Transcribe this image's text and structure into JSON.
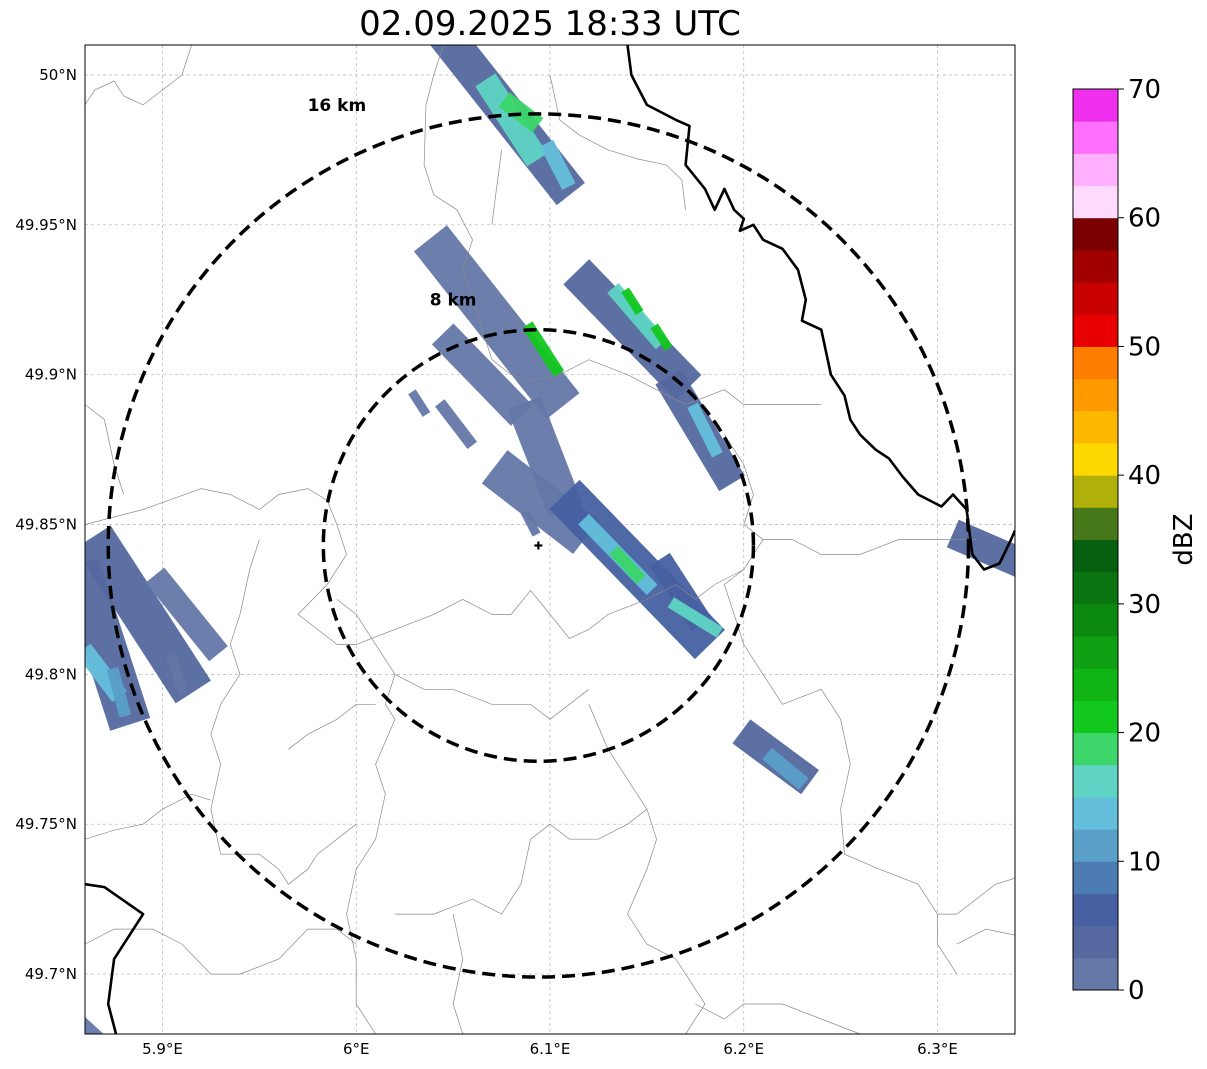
{
  "title": "02.09.2025 18:33 UTC",
  "map": {
    "lon_range": [
      5.86,
      6.34
    ],
    "lat_range": [
      49.68,
      50.01
    ],
    "grid": true,
    "lon_ticks": [
      {
        "value": 5.9,
        "label": "5.9°E"
      },
      {
        "value": 6.0,
        "label": "6°E"
      },
      {
        "value": 6.1,
        "label": "6.1°E"
      },
      {
        "value": 6.2,
        "label": "6.2°E"
      },
      {
        "value": 6.3,
        "label": "6.3°E"
      }
    ],
    "lat_ticks": [
      {
        "value": 50.0,
        "label": "50°N"
      },
      {
        "value": 49.95,
        "label": "49.95°N"
      },
      {
        "value": 49.9,
        "label": "49.9°N"
      },
      {
        "value": 49.85,
        "label": "49.85°N"
      },
      {
        "value": 49.8,
        "label": "49.8°N"
      },
      {
        "value": 49.75,
        "label": "49.75°N"
      },
      {
        "value": 49.7,
        "label": "49.7°N"
      }
    ],
    "radar_site": {
      "lon": 6.094,
      "lat": 49.843
    },
    "range_rings": [
      {
        "label": "8 km",
        "radius_lat": 0.072,
        "radius_lon": 0.111,
        "label_lon": 6.05,
        "label_lat": 49.923
      },
      {
        "label": "16 km",
        "radius_lat": 0.144,
        "radius_lon": 0.222,
        "label_lon": 5.99,
        "label_lat": 49.988
      }
    ]
  },
  "colorbar": {
    "label": "dBZ",
    "min": 0,
    "max": 70,
    "step": 2.5,
    "tick_labels": [
      "0",
      "10",
      "20",
      "30",
      "40",
      "50",
      "60",
      "70"
    ],
    "tick_values": [
      0,
      10,
      20,
      30,
      40,
      50,
      60,
      70
    ],
    "colors": [
      "#6478a8",
      "#5569a0",
      "#4660a2",
      "#4d7cb2",
      "#599fc8",
      "#64bfdc",
      "#5fd4c4",
      "#3cd66a",
      "#12c81e",
      "#10b414",
      "#0f9f12",
      "#0c8a10",
      "#0a7510",
      "#066010",
      "#46781a",
      "#afb00a",
      "#ffd800",
      "#ffb800",
      "#ff9a00",
      "#ff7e00",
      "#e80000",
      "#c80000",
      "#a00000",
      "#7a0000",
      "#ffdcff",
      "#ffb0ff",
      "#ff70ff",
      "#ee30ee"
    ]
  },
  "echoes": [
    {
      "lon1": 6.05,
      "lat1": 50.01,
      "lon2": 6.105,
      "lat2": 49.965,
      "w": 0.012,
      "dbz": 3
    },
    {
      "lon1": 6.07,
      "lat1": 49.995,
      "lon2": 6.09,
      "lat2": 49.975,
      "w": 0.008,
      "dbz": 15
    },
    {
      "lon1": 6.08,
      "lat1": 49.99,
      "lon2": 6.09,
      "lat2": 49.985,
      "w": 0.006,
      "dbz": 18
    },
    {
      "lon1": 6.1,
      "lat1": 49.975,
      "lon2": 6.108,
      "lat2": 49.965,
      "w": 0.005,
      "dbz": 13
    },
    {
      "lon1": 6.045,
      "lat1": 49.94,
      "lon2": 6.1,
      "lat2": 49.895,
      "w": 0.014,
      "dbz": 2
    },
    {
      "lon1": 6.09,
      "lat1": 49.915,
      "lon2": 6.103,
      "lat2": 49.902,
      "w": 0.004,
      "dbz": 22
    },
    {
      "lon1": 6.05,
      "lat1": 49.91,
      "lon2": 6.08,
      "lat2": 49.89,
      "w": 0.01,
      "dbz": 2
    },
    {
      "lon1": 6.12,
      "lat1": 49.93,
      "lon2": 6.165,
      "lat2": 49.9,
      "w": 0.012,
      "dbz": 4
    },
    {
      "lon1": 6.135,
      "lat1": 49.927,
      "lon2": 6.155,
      "lat2": 49.912,
      "w": 0.005,
      "dbz": 15
    },
    {
      "lon1": 6.14,
      "lat1": 49.927,
      "lon2": 6.145,
      "lat2": 49.922,
      "w": 0.003,
      "dbz": 22
    },
    {
      "lon1": 6.155,
      "lat1": 49.915,
      "lon2": 6.16,
      "lat2": 49.91,
      "w": 0.003,
      "dbz": 22
    },
    {
      "lon1": 6.165,
      "lat1": 49.895,
      "lon2": 6.19,
      "lat2": 49.868,
      "w": 0.01,
      "dbz": 4
    },
    {
      "lon1": 6.175,
      "lat1": 49.888,
      "lon2": 6.185,
      "lat2": 49.875,
      "w": 0.004,
      "dbz": 13
    },
    {
      "lon1": 6.09,
      "lat1": 49.885,
      "lon2": 6.105,
      "lat2": 49.86,
      "w": 0.012,
      "dbz": 2
    },
    {
      "lon1": 6.08,
      "lat1": 49.865,
      "lon2": 6.11,
      "lat2": 49.85,
      "w": 0.014,
      "dbz": 2
    },
    {
      "lon1": 6.115,
      "lat1": 49.855,
      "lon2": 6.175,
      "lat2": 49.815,
      "w": 0.014,
      "dbz": 6
    },
    {
      "lon1": 6.12,
      "lat1": 49.85,
      "lon2": 6.15,
      "lat2": 49.83,
      "w": 0.005,
      "dbz": 13
    },
    {
      "lon1": 6.135,
      "lat1": 49.84,
      "lon2": 6.145,
      "lat2": 49.833,
      "w": 0.004,
      "dbz": 18
    },
    {
      "lon1": 6.16,
      "lat1": 49.835,
      "lon2": 6.175,
      "lat2": 49.82,
      "w": 0.008,
      "dbz": 5
    },
    {
      "lon1": 6.165,
      "lat1": 49.823,
      "lon2": 6.185,
      "lat2": 49.815,
      "w": 0.004,
      "dbz": 17
    },
    {
      "lon1": 6.03,
      "lat1": 49.893,
      "lon2": 6.035,
      "lat2": 49.888,
      "w": 0.003,
      "dbz": 2
    },
    {
      "lon1": 6.045,
      "lat1": 49.889,
      "lon2": 6.058,
      "lat2": 49.878,
      "w": 0.004,
      "dbz": 2
    },
    {
      "lon1": 6.088,
      "lat1": 49.853,
      "lon2": 6.092,
      "lat2": 49.848,
      "w": 0.003,
      "dbz": 2
    },
    {
      "lon1": 5.86,
      "lat1": 49.83,
      "lon2": 5.88,
      "lat2": 49.79,
      "w": 0.014,
      "dbz": 4
    },
    {
      "lon1": 5.87,
      "lat1": 49.84,
      "lon2": 5.91,
      "lat2": 49.8,
      "w": 0.014,
      "dbz": 3
    },
    {
      "lon1": 5.9,
      "lat1": 49.83,
      "lon2": 5.925,
      "lat2": 49.81,
      "w": 0.008,
      "dbz": 2
    },
    {
      "lon1": 5.862,
      "lat1": 49.806,
      "lon2": 5.875,
      "lat2": 49.795,
      "w": 0.006,
      "dbz": 13
    },
    {
      "lon1": 5.875,
      "lat1": 49.8,
      "lon2": 5.88,
      "lat2": 49.788,
      "w": 0.004,
      "dbz": 11
    },
    {
      "lon1": 5.905,
      "lat1": 49.805,
      "lon2": 5.91,
      "lat2": 49.795,
      "w": 0.003,
      "dbz": 2
    },
    {
      "lon1": 6.205,
      "lat1": 49.778,
      "lon2": 6.228,
      "lat2": 49.767,
      "w": 0.01,
      "dbz": 3
    },
    {
      "lon1": 6.215,
      "lat1": 49.772,
      "lon2": 6.228,
      "lat2": 49.765,
      "w": 0.005,
      "dbz": 12
    },
    {
      "lon1": 6.315,
      "lat1": 49.845,
      "lon2": 6.34,
      "lat2": 49.838,
      "w": 0.01,
      "dbz": 3
    },
    {
      "lon1": 5.86,
      "lat1": 49.683,
      "lon2": 5.865,
      "lat2": 49.68,
      "w": 0.004,
      "dbz": 2
    }
  ],
  "borders": [
    [
      [
        6.14,
        50.01
      ],
      [
        6.142,
        50.0
      ],
      [
        6.15,
        49.99
      ],
      [
        6.165,
        49.985
      ],
      [
        6.172,
        49.983
      ],
      [
        6.17,
        49.97
      ],
      [
        6.18,
        49.962
      ],
      [
        6.185,
        49.955
      ],
      [
        6.19,
        49.962
      ],
      [
        6.195,
        49.955
      ],
      [
        6.2,
        49.952
      ],
      [
        6.198,
        49.948
      ],
      [
        6.205,
        49.95
      ],
      [
        6.21,
        49.945
      ],
      [
        6.22,
        49.942
      ],
      [
        6.228,
        49.935
      ],
      [
        6.232,
        49.925
      ],
      [
        6.23,
        49.918
      ],
      [
        6.24,
        49.915
      ],
      [
        6.245,
        49.9
      ],
      [
        6.252,
        49.893
      ],
      [
        6.255,
        49.885
      ],
      [
        6.26,
        49.88
      ],
      [
        6.268,
        49.875
      ],
      [
        6.275,
        49.872
      ],
      [
        6.282,
        49.866
      ],
      [
        6.29,
        49.86
      ],
      [
        6.302,
        49.856
      ],
      [
        6.308,
        49.86
      ],
      [
        6.315,
        49.855
      ],
      [
        6.318,
        49.84
      ],
      [
        6.324,
        49.835
      ],
      [
        6.332,
        49.837
      ],
      [
        6.338,
        49.845
      ],
      [
        6.34,
        49.848
      ]
    ],
    [
      [
        5.86,
        49.73
      ],
      [
        5.87,
        49.729
      ],
      [
        5.89,
        49.72
      ],
      [
        5.875,
        49.705
      ],
      [
        5.872,
        49.69
      ],
      [
        5.876,
        49.68
      ]
    ]
  ],
  "boundaries": [
    [
      [
        6.045,
        50.01
      ],
      [
        6.04,
        50.0
      ],
      [
        6.036,
        49.99
      ],
      [
        6.035,
        49.97
      ],
      [
        6.04,
        49.96
      ],
      [
        6.052,
        49.955
      ],
      [
        6.06,
        49.945
      ],
      [
        6.055,
        49.935
      ],
      [
        6.06,
        49.925
      ],
      [
        6.065,
        49.915
      ],
      [
        6.07,
        49.905
      ],
      [
        6.08,
        49.9
      ],
      [
        6.09,
        49.898
      ],
      [
        6.105,
        49.9
      ],
      [
        6.12,
        49.905
      ],
      [
        6.14,
        49.9
      ],
      [
        6.155,
        49.895
      ],
      [
        6.17,
        49.89
      ]
    ],
    [
      [
        6.1,
        50.0
      ],
      [
        6.105,
        49.985
      ],
      [
        6.115,
        49.98
      ],
      [
        6.13,
        49.975
      ],
      [
        6.145,
        49.972
      ],
      [
        6.16,
        49.97
      ],
      [
        6.168,
        49.965
      ],
      [
        6.17,
        49.955
      ]
    ],
    [
      [
        6.075,
        49.975
      ],
      [
        6.072,
        49.96
      ],
      [
        6.07,
        49.95
      ]
    ],
    [
      [
        6.17,
        49.89
      ],
      [
        6.19,
        49.895
      ],
      [
        6.2,
        49.89
      ],
      [
        6.21,
        49.89
      ],
      [
        6.24,
        49.89
      ]
    ],
    [
      [
        6.19,
        49.88
      ],
      [
        6.2,
        49.87
      ],
      [
        6.205,
        49.86
      ],
      [
        6.2,
        49.85
      ],
      [
        6.21,
        49.845
      ],
      [
        6.225,
        49.845
      ],
      [
        6.24,
        49.84
      ],
      [
        6.26,
        49.84
      ],
      [
        6.28,
        49.845
      ],
      [
        6.3,
        49.845
      ],
      [
        6.32,
        49.845
      ]
    ],
    [
      [
        6.21,
        49.845
      ],
      [
        6.2,
        49.835
      ],
      [
        6.19,
        49.83
      ],
      [
        6.2,
        49.81
      ],
      [
        6.21,
        49.8
      ],
      [
        6.22,
        49.79
      ],
      [
        6.24,
        49.795
      ],
      [
        6.25,
        49.785
      ],
      [
        6.255,
        49.77
      ],
      [
        6.25,
        49.755
      ],
      [
        6.252,
        49.74
      ],
      [
        6.27,
        49.735
      ],
      [
        6.29,
        49.73
      ],
      [
        6.3,
        49.72
      ],
      [
        6.31,
        49.72
      ],
      [
        6.32,
        49.725
      ],
      [
        6.33,
        49.73
      ],
      [
        6.34,
        49.732
      ]
    ],
    [
      [
        6.3,
        49.72
      ],
      [
        6.3,
        49.71
      ],
      [
        6.31,
        49.7
      ]
    ],
    [
      [
        6.31,
        49.71
      ],
      [
        6.325,
        49.715
      ],
      [
        6.34,
        49.713
      ]
    ],
    [
      [
        5.86,
        49.85
      ],
      [
        5.89,
        49.855
      ],
      [
        5.92,
        49.862
      ],
      [
        5.935,
        49.86
      ],
      [
        5.95,
        49.855
      ],
      [
        5.96,
        49.86
      ],
      [
        5.975,
        49.862
      ],
      [
        5.985,
        49.858
      ],
      [
        5.99,
        49.85
      ],
      [
        5.995,
        49.84
      ],
      [
        5.985,
        49.83
      ],
      [
        5.97,
        49.82
      ],
      [
        5.99,
        49.81
      ],
      [
        6.0,
        49.81
      ],
      [
        6.02,
        49.815
      ],
      [
        6.04,
        49.82
      ],
      [
        6.055,
        49.825
      ],
      [
        6.07,
        49.82
      ],
      [
        6.08,
        49.82
      ],
      [
        6.09,
        49.828
      ],
      [
        6.1,
        49.82
      ],
      [
        6.11,
        49.812
      ],
      [
        6.12,
        49.815
      ],
      [
        6.13,
        49.82
      ],
      [
        6.15,
        49.825
      ],
      [
        6.165,
        49.83
      ],
      [
        6.175,
        49.825
      ],
      [
        6.185,
        49.83
      ],
      [
        6.2,
        49.835
      ]
    ],
    [
      [
        5.99,
        49.825
      ],
      [
        6.0,
        49.82
      ],
      [
        6.01,
        49.81
      ],
      [
        6.02,
        49.8
      ],
      [
        6.015,
        49.79
      ],
      [
        6.02,
        49.785
      ],
      [
        6.01,
        49.77
      ],
      [
        6.015,
        49.76
      ],
      [
        6.01,
        49.745
      ],
      [
        6.0,
        49.735
      ],
      [
        5.995,
        49.72
      ],
      [
        6.0,
        49.705
      ],
      [
        6.0,
        49.69
      ],
      [
        6.01,
        49.68
      ]
    ],
    [
      [
        5.86,
        49.89
      ],
      [
        5.87,
        49.885
      ],
      [
        5.875,
        49.87
      ],
      [
        5.88,
        49.86
      ]
    ],
    [
      [
        5.86,
        49.99
      ],
      [
        5.865,
        49.995
      ],
      [
        5.875,
        49.998
      ],
      [
        5.88,
        49.993
      ],
      [
        5.89,
        49.99
      ],
      [
        5.9,
        49.995
      ],
      [
        5.91,
        50.0
      ],
      [
        5.915,
        50.01
      ]
    ],
    [
      [
        5.95,
        49.845
      ],
      [
        5.945,
        49.835
      ],
      [
        5.94,
        49.82
      ],
      [
        5.935,
        49.81
      ],
      [
        5.94,
        49.8
      ],
      [
        5.93,
        49.79
      ],
      [
        5.925,
        49.78
      ],
      [
        5.93,
        49.77
      ],
      [
        5.925,
        49.755
      ],
      [
        5.93,
        49.74
      ],
      [
        5.95,
        49.74
      ],
      [
        5.96,
        49.735
      ],
      [
        5.965,
        49.73
      ],
      [
        5.975,
        49.735
      ],
      [
        5.98,
        49.74
      ],
      [
        5.99,
        49.745
      ],
      [
        6.0,
        49.75
      ]
    ],
    [
      [
        5.86,
        49.745
      ],
      [
        5.875,
        49.748
      ],
      [
        5.89,
        49.75
      ],
      [
        5.9,
        49.755
      ],
      [
        5.915,
        49.76
      ],
      [
        5.925,
        49.758
      ]
    ],
    [
      [
        5.86,
        49.71
      ],
      [
        5.875,
        49.715
      ],
      [
        5.895,
        49.715
      ],
      [
        5.91,
        49.71
      ],
      [
        5.925,
        49.7
      ],
      [
        5.94,
        49.7
      ],
      [
        5.96,
        49.705
      ],
      [
        5.975,
        49.715
      ],
      [
        5.99,
        49.715
      ],
      [
        6.0,
        49.71
      ]
    ],
    [
      [
        5.965,
        49.775
      ],
      [
        5.975,
        49.78
      ],
      [
        5.99,
        49.785
      ],
      [
        6.0,
        49.79
      ],
      [
        6.01,
        49.79
      ]
    ],
    [
      [
        6.02,
        49.8
      ],
      [
        6.035,
        49.795
      ],
      [
        6.05,
        49.795
      ],
      [
        6.07,
        49.79
      ],
      [
        6.09,
        49.79
      ],
      [
        6.1,
        49.785
      ],
      [
        6.11,
        49.79
      ],
      [
        6.12,
        49.795
      ]
    ],
    [
      [
        6.12,
        49.79
      ],
      [
        6.13,
        49.775
      ],
      [
        6.14,
        49.765
      ],
      [
        6.15,
        49.755
      ],
      [
        6.155,
        49.745
      ],
      [
        6.15,
        49.735
      ],
      [
        6.14,
        49.72
      ],
      [
        6.15,
        49.71
      ],
      [
        6.165,
        49.705
      ],
      [
        6.17,
        49.7
      ],
      [
        6.18,
        49.69
      ],
      [
        6.17,
        49.68
      ]
    ],
    [
      [
        6.175,
        49.69
      ],
      [
        6.19,
        49.685
      ],
      [
        6.2,
        49.69
      ],
      [
        6.22,
        49.69
      ],
      [
        6.24,
        49.685
      ],
      [
        6.26,
        49.68
      ]
    ],
    [
      [
        6.02,
        49.72
      ],
      [
        6.04,
        49.72
      ],
      [
        6.06,
        49.725
      ],
      [
        6.075,
        49.72
      ],
      [
        6.085,
        49.73
      ]
    ],
    [
      [
        6.05,
        49.72
      ],
      [
        6.055,
        49.705
      ],
      [
        6.05,
        49.69
      ],
      [
        6.055,
        49.68
      ]
    ],
    [
      [
        6.085,
        49.73
      ],
      [
        6.09,
        49.745
      ],
      [
        6.1,
        49.75
      ],
      [
        6.11,
        49.745
      ],
      [
        6.125,
        49.745
      ],
      [
        6.14,
        49.75
      ],
      [
        6.15,
        49.755
      ]
    ]
  ]
}
